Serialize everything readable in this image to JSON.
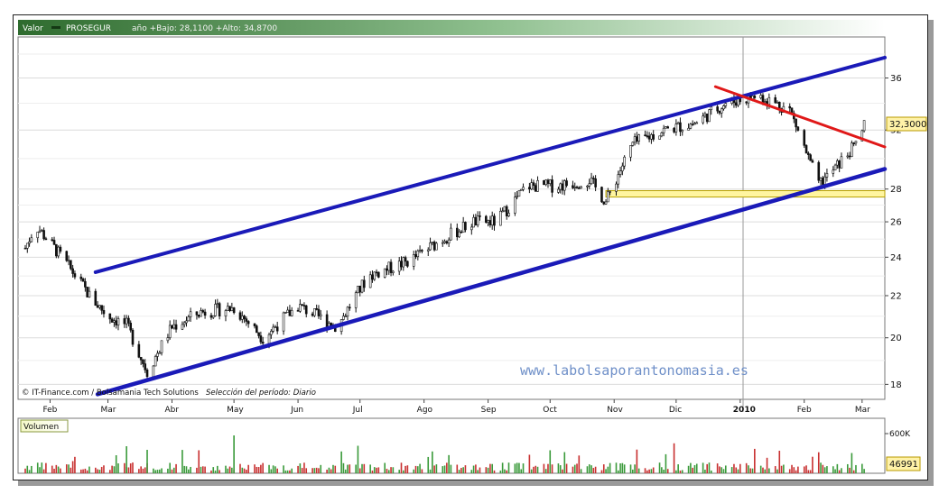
{
  "header": {
    "field_label": "Valor",
    "ticker": "PROSEGUR",
    "range_text": "año +Bajo: 28,1100 +Alto: 34,8700"
  },
  "footer": {
    "credit": "© IT-Finance.com / Bolsamania Tech Solutions",
    "period": "Selección del período: Diario"
  },
  "watermark": "www.labolsaporantonomasia.es",
  "price_badge": "32,3000",
  "volume_panel": {
    "title": "Volumen",
    "axis_label": "600K",
    "badge": "46991"
  },
  "colors": {
    "header_dark": "#2e6b2e",
    "header_light": "#ffffff",
    "channel_lines": "#1a1ab8",
    "resistance_line": "#e01818",
    "support_band_fill": "#fff5a0",
    "support_band_border": "#b8a000",
    "candle_up": "#111111",
    "candle_down": "#111111",
    "volume_up": "#3a9a3a",
    "volume_down": "#c83030",
    "badge_fill": "#fff2a8",
    "watermark": "#6e8fc8"
  },
  "chart_data": {
    "type": "candlestick",
    "title": "PROSEGUR",
    "frequency": "daily",
    "x_axis_labels": [
      "Feb",
      "Mar",
      "Abr",
      "May",
      "Jun",
      "Jul",
      "Ago",
      "Sep",
      "Oct",
      "Nov",
      "Dic",
      "2010",
      "Feb",
      "Mar"
    ],
    "y_axis_ticks": [
      18,
      20,
      22,
      24,
      26,
      28,
      32,
      36
    ],
    "y_axis_scale": "log",
    "ylim": [
      17.4,
      39.5
    ],
    "period_low": 28.11,
    "period_high": 34.87,
    "last_price": 32.3,
    "price_path": [
      {
        "date": "2009-01-20",
        "close": 24.5
      },
      {
        "date": "2009-01-25",
        "close": 25.8
      },
      {
        "date": "2009-02-01",
        "close": 24.8
      },
      {
        "date": "2009-02-10",
        "close": 23.5
      },
      {
        "date": "2009-02-20",
        "close": 22.0
      },
      {
        "date": "2009-03-01",
        "close": 21.0
      },
      {
        "date": "2009-03-10",
        "close": 20.6
      },
      {
        "date": "2009-03-20",
        "close": 18.5
      },
      {
        "date": "2009-04-01",
        "close": 20.5
      },
      {
        "date": "2009-04-15",
        "close": 21.2
      },
      {
        "date": "2009-05-01",
        "close": 21.4
      },
      {
        "date": "2009-05-15",
        "close": 20.0
      },
      {
        "date": "2009-06-01",
        "close": 21.5
      },
      {
        "date": "2009-06-20",
        "close": 20.5
      },
      {
        "date": "2009-07-05",
        "close": 23.0
      },
      {
        "date": "2009-07-25",
        "close": 23.8
      },
      {
        "date": "2009-08-10",
        "close": 25.0
      },
      {
        "date": "2009-08-25",
        "close": 26.0
      },
      {
        "date": "2009-09-05",
        "close": 26.0
      },
      {
        "date": "2009-09-20",
        "close": 28.2
      },
      {
        "date": "2009-10-05",
        "close": 28.2
      },
      {
        "date": "2009-10-20",
        "close": 28.6
      },
      {
        "date": "2009-10-28",
        "close": 27.2
      },
      {
        "date": "2009-11-10",
        "close": 31.0
      },
      {
        "date": "2009-11-25",
        "close": 32.0
      },
      {
        "date": "2009-12-10",
        "close": 32.5
      },
      {
        "date": "2009-12-25",
        "close": 34.0
      },
      {
        "date": "2010-01-10",
        "close": 34.6
      },
      {
        "date": "2010-01-25",
        "close": 33.5
      },
      {
        "date": "2010-02-03",
        "close": 30.0
      },
      {
        "date": "2010-02-08",
        "close": 28.3
      },
      {
        "date": "2010-02-15",
        "close": 29.2
      },
      {
        "date": "2010-02-25",
        "close": 30.8
      },
      {
        "date": "2010-03-02",
        "close": 32.3
      }
    ],
    "trendlines": [
      {
        "name": "upper channel",
        "from": {
          "date": "2009-02-23",
          "value": 23.2
        },
        "to": {
          "date": "2010-03-12",
          "value": 37.7
        }
      },
      {
        "name": "lower channel",
        "from": {
          "date": "2009-02-24",
          "value": 17.6
        },
        "to": {
          "date": "2010-03-12",
          "value": 29.3
        }
      },
      {
        "name": "resistance",
        "from": {
          "date": "2009-12-20",
          "value": 35.3
        },
        "to": {
          "date": "2010-03-12",
          "value": 30.8
        }
      }
    ],
    "support_band": {
      "from_date": "2009-10-28",
      "low": 27.5,
      "high": 27.9
    },
    "volume": {
      "axis_ticks": [
        "600K"
      ],
      "last_value": 46991
    }
  }
}
